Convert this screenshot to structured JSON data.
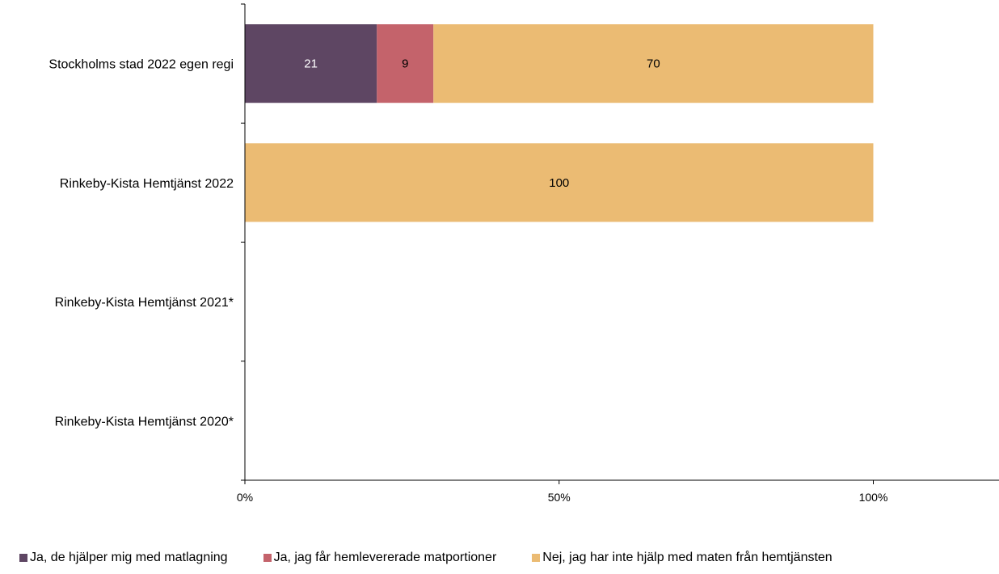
{
  "chart_data": {
    "type": "bar",
    "orientation": "horizontal",
    "stacked": true,
    "categories": [
      "Stockholms stad 2022 egen regi",
      "Rinkeby-Kista Hemtjänst 2022",
      "Rinkeby-Kista Hemtjänst 2021*",
      "Rinkeby-Kista Hemtjänst 2020*"
    ],
    "series": [
      {
        "name": "Ja, de hjälper mig med matlagning",
        "color": "#5e4663",
        "values": [
          21,
          null,
          null,
          null
        ]
      },
      {
        "name": "Ja, jag får hemlevererade matportioner",
        "color": "#c4636b",
        "values": [
          9,
          null,
          null,
          null
        ]
      },
      {
        "name": "Nej, jag har inte hjälp med maten från hemtjänsten",
        "color": "#ebbb73",
        "values": [
          70,
          100,
          null,
          null
        ]
      }
    ],
    "data_label_colors": [
      "#ffffff",
      "#000000",
      "#000000"
    ],
    "xlim": [
      0,
      120
    ],
    "x_ticks": [
      0,
      50,
      100
    ],
    "x_tick_labels": [
      "0%",
      "50%",
      "100%"
    ],
    "grid": false,
    "legend_position": "bottom"
  }
}
